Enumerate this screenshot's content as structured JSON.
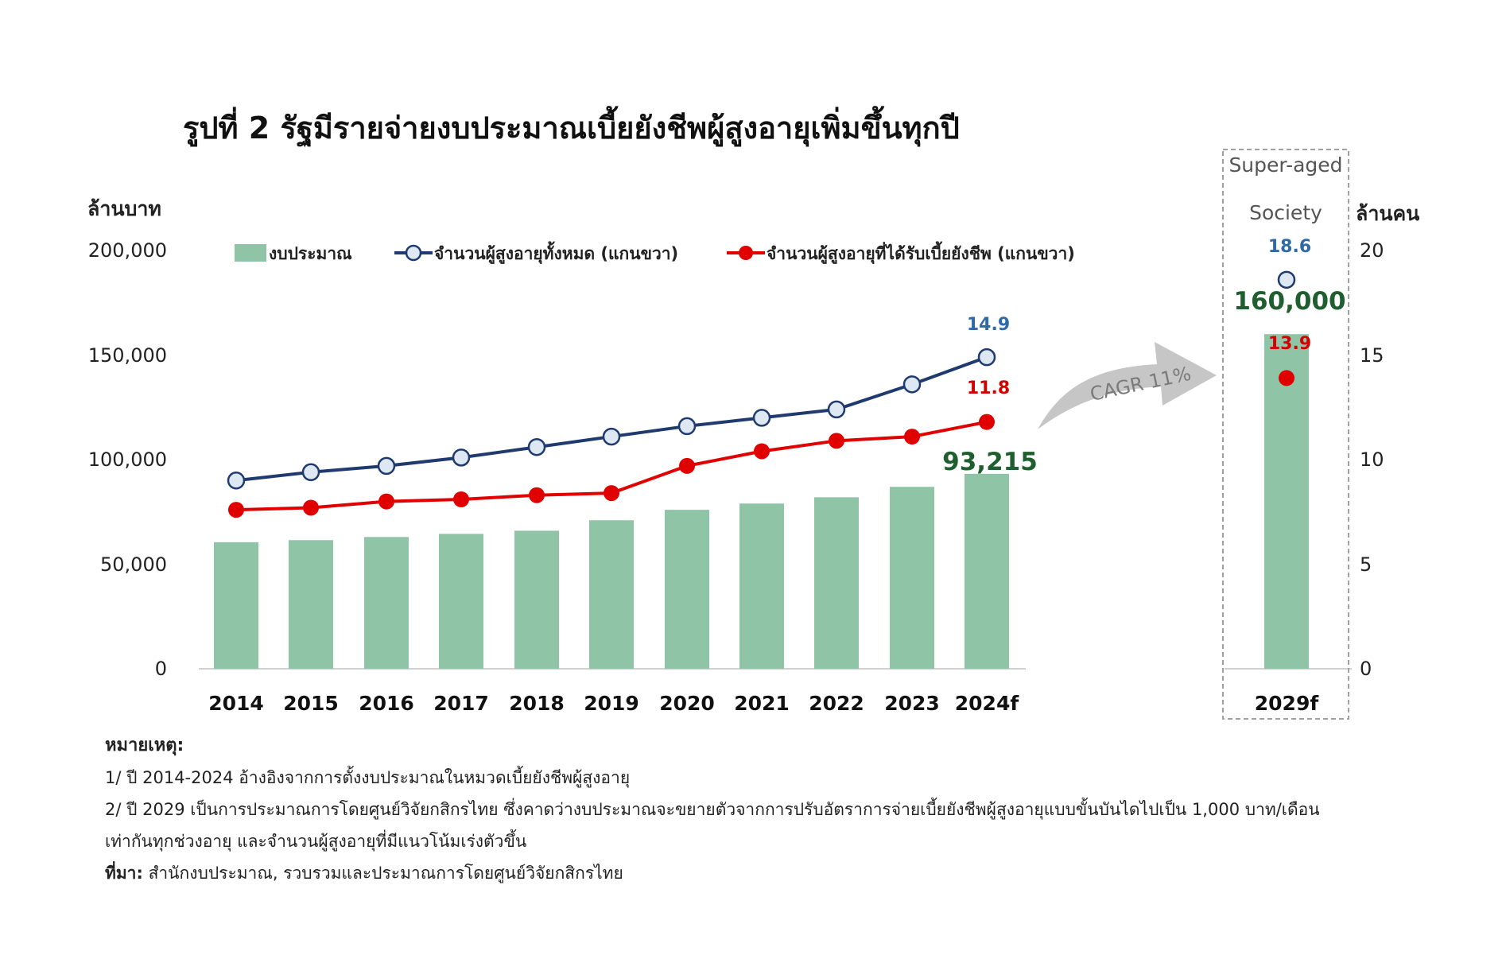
{
  "title": "รูปที่ 2 รัฐมีรายจ่ายงบประมาณเบี้ยยังชีพผู้สูงอายุเพิ่มขึ้นทุกปี",
  "colors": {
    "bar": "#8fc4a7",
    "total_line": "#1f3a6e",
    "recipients_line": "#e00000",
    "total_marker_fill": "#dde8f3",
    "label_blue": "#2e6aa6",
    "label_red": "#d40000",
    "label_green": "#1f5e2e",
    "arrow": "#c6c6c6"
  },
  "chart_data": {
    "type": "bar",
    "title": "รูปที่ 2 รัฐมีรายจ่ายงบประมาณเบี้ยยังชีพผู้สูงอายุเพิ่มขึ้นทุกปี",
    "categories": [
      "2014",
      "2015",
      "2016",
      "2017",
      "2018",
      "2019",
      "2020",
      "2021",
      "2022",
      "2023",
      "2024f",
      "2029f"
    ],
    "y_left": {
      "label": "ล้านบาท",
      "ticks": [
        "200,000",
        "150,000",
        "100,000",
        "50,000",
        "0"
      ],
      "min": 0,
      "max": 200000
    },
    "y_right": {
      "label": "ล้านคน",
      "ticks": [
        "20",
        "15",
        "10",
        "5",
        "0"
      ],
      "min": 0,
      "max": 20
    },
    "legend_placement": "top",
    "series": [
      {
        "name": "งบประมาณ",
        "type": "bar",
        "axis": "left",
        "values": [
          60500,
          61500,
          63000,
          64500,
          66000,
          71000,
          76000,
          79000,
          82000,
          87000,
          93215,
          160000
        ]
      },
      {
        "name": "จำนวนผู้สูงอายุทั้งหมด (แกนขวา)",
        "type": "line",
        "axis": "right",
        "values": [
          9.0,
          9.4,
          9.7,
          10.1,
          10.6,
          11.1,
          11.6,
          12.0,
          12.4,
          13.6,
          14.9,
          18.6
        ]
      },
      {
        "name": "จำนวนผู้สูงอายุที่ได้รับเบี้ยยังชีพ (แกนขวา)",
        "type": "line",
        "axis": "right",
        "values": [
          7.6,
          7.7,
          8.0,
          8.1,
          8.3,
          8.4,
          9.7,
          10.4,
          10.9,
          11.1,
          11.8,
          13.9
        ]
      }
    ],
    "data_labels": {
      "bar_2024": "93,215",
      "bar_2029": "160,000",
      "total_2024": "14.9",
      "total_2029": "18.6",
      "recipients_2024": "11.8",
      "recipients_2029": "13.9"
    },
    "annotations": {
      "cagr": "CAGR 11%",
      "box_line1": "Super-aged",
      "box_line2": "Society"
    }
  },
  "notes": {
    "header": "หมายเหตุ:",
    "note1": "1/ ปี 2014-2024 อ้างอิงจากการตั้งงบประมาณในหมวดเบี้ยยังชีพผู้สูงอายุ",
    "note2a": "2/ ปี 2029 เป็นการประมาณการโดยศูนย์วิจัยกสิกรไทย ซึ่งคาดว่างบประมาณจะขยายตัวจากการปรับอัตราการจ่ายเบี้ยยังชีพผู้สูงอายุแบบขั้นบันไดไปเป็น 1,000 บาท/เดือน",
    "note2b": "เท่ากันทุกช่วงอายุ และจำนวนผู้สูงอายุที่มีแนวโน้มเร่งตัวขึ้น",
    "source_label": "ที่มา:",
    "source_text": " สำนักงบประมาณ, รวบรวมและประมาณการโดยศูนย์วิจัยกสิกรไทย"
  }
}
